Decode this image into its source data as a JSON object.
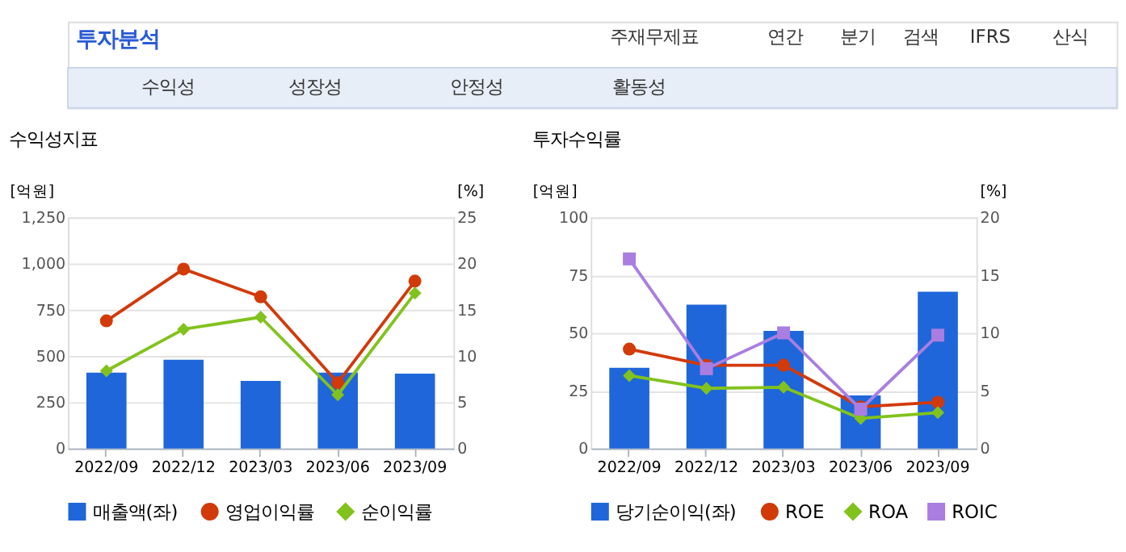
{
  "chart_data": [
    {
      "type": "other",
      "title": "투자분석",
      "annotations": [
        "주재무제표",
        "연간",
        "분기",
        "검색",
        "IFRS",
        "산식",
        "수익성",
        "성장성",
        "안정성",
        "활동성"
      ]
    },
    {
      "type": "bar",
      "title": "수익성지표",
      "ylabel": "[억원]",
      "y2label": "[%]",
      "categories": [
        "2022/09",
        "2022/12",
        "2023/03",
        "2023/06",
        "2023/09"
      ],
      "ylim": [
        0,
        1250
      ],
      "yticks": [
        0,
        250,
        500,
        750,
        {
          "value": 1000,
          "label": "1,000"
        },
        {
          "value": 1250,
          "label": "1,250"
        }
      ],
      "y2lim": [
        0,
        25
      ],
      "y2ticks": [
        0,
        5,
        10,
        15,
        20,
        25
      ],
      "grid": "y",
      "legend": "bottom",
      "series": [
        {
          "name": "매출액(좌)",
          "type": "bar",
          "color": "#1f66da",
          "values": [
            410,
            480,
            365,
            410,
            405
          ]
        },
        {
          "name": "영업이익률",
          "type": "line",
          "axis": "y2",
          "marker": "circle",
          "color": "#d23a0a",
          "values": [
            13.8,
            19.4,
            16.4,
            7.1,
            18.1
          ]
        },
        {
          "name": "순이익률",
          "type": "line",
          "axis": "y2",
          "marker": "diamond",
          "color": "#82c21e",
          "values": [
            8.4,
            12.9,
            14.2,
            5.8,
            16.8
          ]
        }
      ]
    },
    {
      "type": "bar",
      "title": "투자수익률",
      "ylabel": "[억원]",
      "y2label": "[%]",
      "categories": [
        "2022/09",
        "2022/12",
        "2023/03",
        "2023/06",
        "2023/09"
      ],
      "ylim": [
        0,
        100
      ],
      "yticks": [
        0,
        25,
        50,
        75,
        100
      ],
      "y2lim": [
        0,
        20
      ],
      "y2ticks": [
        0,
        5,
        10,
        15,
        20
      ],
      "grid": "y",
      "legend": "bottom",
      "series": [
        {
          "name": "당기순이익(좌)",
          "type": "bar",
          "color": "#1f66da",
          "values": [
            34.9,
            62.2,
            50.9,
            22.9,
            67.8
          ]
        },
        {
          "name": "ROE",
          "type": "line",
          "axis": "y2",
          "marker": "circle",
          "color": "#d23a0a",
          "values": [
            8.6,
            7.2,
            7.2,
            3.6,
            4.0
          ]
        },
        {
          "name": "ROA",
          "type": "line",
          "axis": "y2",
          "marker": "diamond",
          "color": "#82c21e",
          "values": [
            6.3,
            5.2,
            5.3,
            2.6,
            3.1
          ]
        },
        {
          "name": "ROIC",
          "type": "line",
          "axis": "y2",
          "marker": "square",
          "color": "#a97ee0",
          "values": [
            16.4,
            6.9,
            10.0,
            3.4,
            9.8
          ]
        }
      ]
    }
  ]
}
